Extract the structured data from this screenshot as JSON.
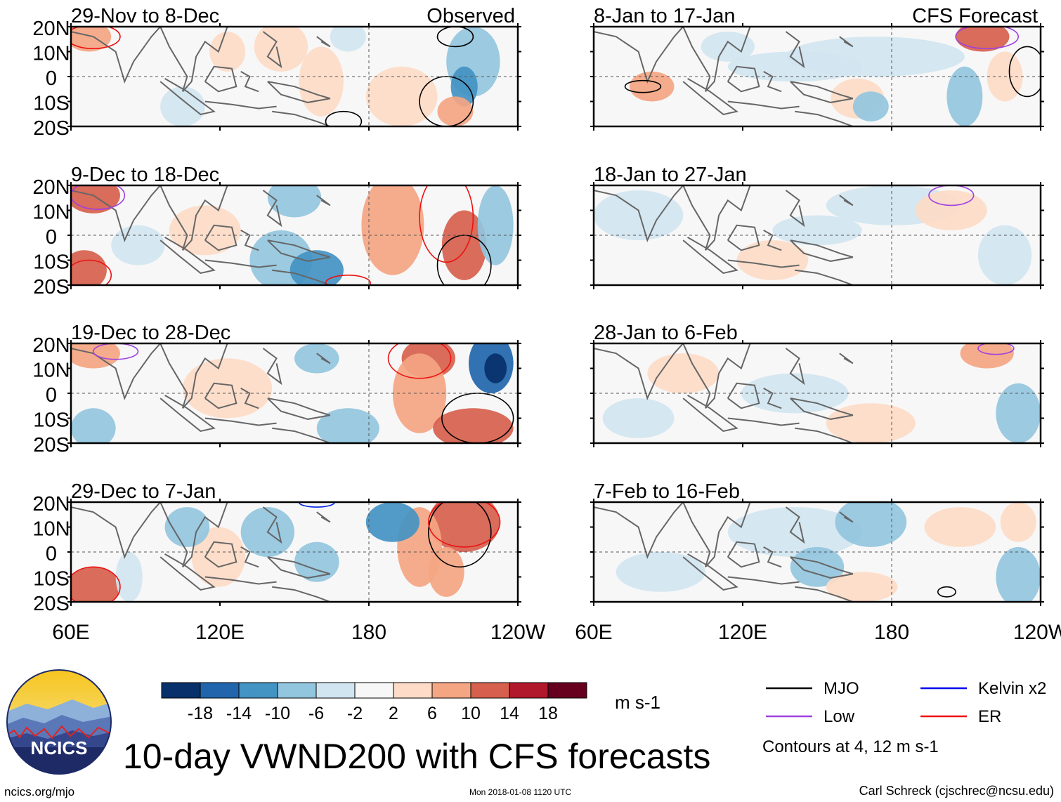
{
  "title": "10-day VWND200 with CFS forecasts",
  "headers": {
    "observed": "Observed",
    "forecast": "CFS Forecast"
  },
  "panels_left": [
    {
      "period": "29-Nov to 8-Dec"
    },
    {
      "period": "9-Dec to 18-Dec"
    },
    {
      "period": "19-Dec to 28-Dec"
    },
    {
      "period": "29-Dec to 7-Jan"
    }
  ],
  "panels_right": [
    {
      "period": "8-Jan to 17-Jan"
    },
    {
      "period": "18-Jan to 27-Jan"
    },
    {
      "period": "28-Jan to 6-Feb"
    },
    {
      "period": "7-Feb to 16-Feb"
    }
  ],
  "lat_labels": [
    "20N",
    "10N",
    "0",
    "10S",
    "20S"
  ],
  "lon_labels": [
    "60E",
    "120E",
    "180",
    "120W"
  ],
  "colorbar": {
    "ticks": [
      "-18",
      "-14",
      "-10",
      "-6",
      "-2",
      "2",
      "6",
      "10",
      "14",
      "18"
    ],
    "colors": [
      "#08306b",
      "#2166ac",
      "#4393c3",
      "#92c5de",
      "#d1e5f0",
      "#f7f7f7",
      "#fddbc7",
      "#f4a582",
      "#d6604d",
      "#b2182b",
      "#67001f"
    ],
    "units": "m s-1"
  },
  "legend": {
    "items": [
      {
        "label": "MJO",
        "color": "#000000"
      },
      {
        "label": "Kelvin x2",
        "color": "#0000ee"
      },
      {
        "label": "Low",
        "color": "#a040e0"
      },
      {
        "label": "ER",
        "color": "#ee1111"
      }
    ],
    "note": "Contours at 4, 12 m s-1"
  },
  "logo": {
    "text": "NCICS"
  },
  "footer": {
    "url": "ncics.org/mjo",
    "timestamp": "Mon 2018-01-08 1120 UTC",
    "author": "Carl Schreck (cjschrec@ncsu.edu)"
  }
}
